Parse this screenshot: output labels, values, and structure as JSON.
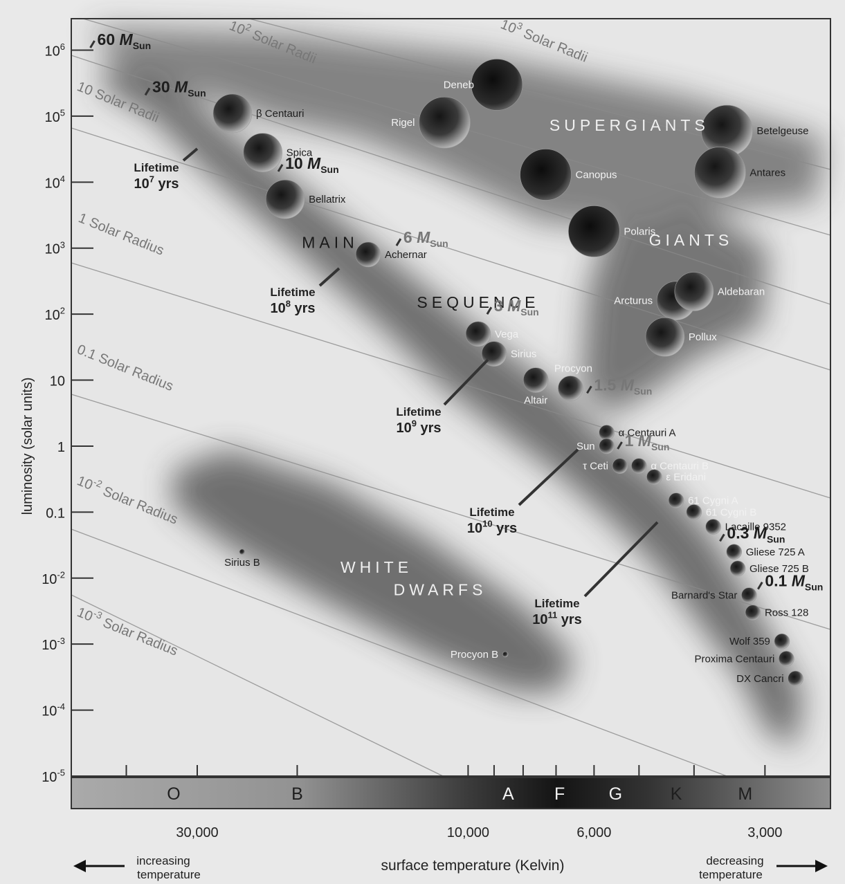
{
  "chart_data": {
    "type": "scatter",
    "title": "",
    "xlabel": "surface temperature (Kelvin)",
    "ylabel": "luminosity (solar units)",
    "x_scale": "log-reversed",
    "y_scale": "log",
    "xlim": [
      50000,
      2300
    ],
    "ylim": [
      1e-05,
      3000000
    ],
    "grid": false,
    "y_ticks": [
      {
        "base": "10",
        "exp": "6",
        "value": 1000000
      },
      {
        "base": "10",
        "exp": "5",
        "value": 100000
      },
      {
        "base": "10",
        "exp": "4",
        "value": 10000
      },
      {
        "base": "10",
        "exp": "3",
        "value": 1000
      },
      {
        "base": "10",
        "exp": "2",
        "value": 100
      },
      {
        "base": "10",
        "exp": "",
        "value": 10
      },
      {
        "base": "1",
        "exp": "",
        "value": 1
      },
      {
        "base": "0.1",
        "exp": "",
        "value": 0.1
      },
      {
        "base": "10",
        "exp": "-2",
        "value": 0.01
      },
      {
        "base": "10",
        "exp": "-3",
        "value": 0.001
      },
      {
        "base": "10",
        "exp": "-4",
        "value": 0.0001
      },
      {
        "base": "10",
        "exp": "-5",
        "value": 1e-05
      }
    ],
    "x_ticks": [
      {
        "label": "30,000",
        "value": 30000
      },
      {
        "label": "10,000",
        "value": 10000
      },
      {
        "label": "6,000",
        "value": 6000
      },
      {
        "label": "3,000",
        "value": 3000
      }
    ],
    "spectral_classes": [
      {
        "label": "O",
        "temp": 33000
      },
      {
        "label": "B",
        "temp": 20000
      },
      {
        "label": "A",
        "temp": 8500
      },
      {
        "label": "F",
        "temp": 6900
      },
      {
        "label": "G",
        "temp": 5500
      },
      {
        "label": "K",
        "temp": 4300
      },
      {
        "label": "M",
        "temp": 3250
      }
    ],
    "regions": [
      {
        "name": "SUPERGIANTS",
        "temp": 5200,
        "lum": 60000
      },
      {
        "name": "GIANTS",
        "temp": 4050,
        "lum": 1100
      },
      {
        "name": "MAIN",
        "temp": 17500,
        "lum": 1000
      },
      {
        "name": "SEQUENCE",
        "temp": 9600,
        "lum": 125
      },
      {
        "name": "WHITE",
        "temp": 14500,
        "lum": 0.012
      },
      {
        "name": "DWARFS",
        "temp": 11200,
        "lum": 0.0055
      }
    ],
    "radius_lines": [
      {
        "label": "10³ Solar Radii",
        "base": "10",
        "exp": "3",
        "text": "Solar Radii"
      },
      {
        "label": "10² Solar Radii",
        "base": "10",
        "exp": "2",
        "text": "Solar Radii"
      },
      {
        "label": "10 Solar Radii",
        "base": "10",
        "exp": "",
        "text": "Solar Radii"
      },
      {
        "label": "1 Solar Radius",
        "base": "1",
        "exp": "",
        "text": "Solar Radius"
      },
      {
        "label": "0.1 Solar Radius",
        "base": "0.1",
        "exp": "",
        "text": "Solar Radius"
      },
      {
        "label": "10⁻² Solar Radius",
        "base": "10",
        "exp": "-2",
        "text": "Solar Radius"
      },
      {
        "label": "10⁻³ Solar Radius",
        "base": "10",
        "exp": "-3",
        "text": "Solar Radius"
      }
    ],
    "stars": [
      {
        "name": "Deneb",
        "temp": 8900,
        "lum": 300000,
        "size": "large"
      },
      {
        "name": "Rigel",
        "temp": 11000,
        "lum": 80000,
        "size": "large"
      },
      {
        "name": "β Centauri",
        "temp": 26000,
        "lum": 110000,
        "size": "medium"
      },
      {
        "name": "Spica",
        "temp": 23000,
        "lum": 28000,
        "size": "medium"
      },
      {
        "name": "Bellatrix",
        "temp": 21000,
        "lum": 5500,
        "size": "medium"
      },
      {
        "name": "Achernar",
        "temp": 15000,
        "lum": 800,
        "size": "small"
      },
      {
        "name": "Betelgeuse",
        "temp": 3500,
        "lum": 60000,
        "size": "large"
      },
      {
        "name": "Antares",
        "temp": 3600,
        "lum": 14000,
        "size": "large"
      },
      {
        "name": "Canopus",
        "temp": 7300,
        "lum": 13000,
        "size": "large"
      },
      {
        "name": "Polaris",
        "temp": 6000,
        "lum": 1800,
        "size": "large"
      },
      {
        "name": "Arcturus",
        "temp": 4300,
        "lum": 160,
        "size": "medium"
      },
      {
        "name": "Aldebaran",
        "temp": 4000,
        "lum": 220,
        "size": "medium"
      },
      {
        "name": "Pollux",
        "temp": 4500,
        "lum": 45,
        "size": "medium"
      },
      {
        "name": "Vega",
        "temp": 9600,
        "lum": 50,
        "size": "small"
      },
      {
        "name": "Sirius",
        "temp": 9000,
        "lum": 25,
        "size": "small"
      },
      {
        "name": "Altair",
        "temp": 7600,
        "lum": 10,
        "size": "small"
      },
      {
        "name": "Procyon",
        "temp": 6600,
        "lum": 7.5,
        "size": "small"
      },
      {
        "name": "α Centauri A",
        "temp": 5700,
        "lum": 1.6,
        "size": "tiny"
      },
      {
        "name": "Sun",
        "temp": 5700,
        "lum": 1,
        "size": "tiny"
      },
      {
        "name": "τ Ceti",
        "temp": 5400,
        "lum": 0.5,
        "size": "tiny"
      },
      {
        "name": "α Centauri B",
        "temp": 5000,
        "lum": 0.5,
        "size": "tiny"
      },
      {
        "name": "ε Eridani",
        "temp": 4700,
        "lum": 0.34,
        "size": "tiny"
      },
      {
        "name": "61 Cygni A",
        "temp": 4300,
        "lum": 0.15,
        "size": "tiny"
      },
      {
        "name": "61 Cygni B",
        "temp": 4000,
        "lum": 0.1,
        "size": "tiny"
      },
      {
        "name": "Lacaille 9352",
        "temp": 3700,
        "lum": 0.06,
        "size": "tiny"
      },
      {
        "name": "Gliese 725 A",
        "temp": 3400,
        "lum": 0.025,
        "size": "tiny"
      },
      {
        "name": "Gliese 725 B",
        "temp": 3350,
        "lum": 0.014,
        "size": "tiny"
      },
      {
        "name": "Barnard's Star",
        "temp": 3200,
        "lum": 0.0055,
        "size": "tiny"
      },
      {
        "name": "Ross 128",
        "temp": 3150,
        "lum": 0.003,
        "size": "tiny"
      },
      {
        "name": "Wolf 359",
        "temp": 2800,
        "lum": 0.0011,
        "size": "tiny"
      },
      {
        "name": "Proxima Centauri",
        "temp": 2750,
        "lum": 0.0006,
        "size": "tiny"
      },
      {
        "name": "DX Cancri",
        "temp": 2650,
        "lum": 0.0003,
        "size": "tiny"
      },
      {
        "name": "Sirius B",
        "temp": 25000,
        "lum": 0.025,
        "size": "dot"
      },
      {
        "name": "Procyon B",
        "temp": 8600,
        "lum": 0.0007,
        "size": "dot"
      }
    ],
    "mass_labels": [
      {
        "num": "60",
        "temp": 45000,
        "lum": 1200000
      },
      {
        "num": "30",
        "temp": 36000,
        "lum": 230000
      },
      {
        "num": "10",
        "temp": 21000,
        "lum": 16000
      },
      {
        "num": "6",
        "temp": 13000,
        "lum": 1200
      },
      {
        "num": "3",
        "temp": 9000,
        "lum": 110
      },
      {
        "num": "1.5",
        "temp": 6000,
        "lum": 7
      },
      {
        "num": "1",
        "temp": 5300,
        "lum": 1
      },
      {
        "num": "0.3",
        "temp": 3500,
        "lum": 0.04
      },
      {
        "num": "0.1",
        "temp": 3000,
        "lum": 0.0075
      }
    ],
    "mass_unit": "M",
    "mass_sub": "Sun",
    "lifetimes": [
      {
        "label": "Lifetime",
        "base": "10",
        "exp": "7",
        "unit": "yrs"
      },
      {
        "label": "Lifetime",
        "base": "10",
        "exp": "8",
        "unit": "yrs"
      },
      {
        "label": "Lifetime",
        "base": "10",
        "exp": "9",
        "unit": "yrs"
      },
      {
        "label": "Lifetime",
        "base": "10",
        "exp": "10",
        "unit": "yrs"
      },
      {
        "label": "Lifetime",
        "base": "10",
        "exp": "11",
        "unit": "yrs"
      }
    ],
    "footer": {
      "left_text": [
        "increasing",
        "temperature"
      ],
      "right_text": [
        "decreasing",
        "temperature"
      ]
    },
    "colors": {
      "background": "#e6e6e6",
      "region": "#4a4a4a",
      "line": "#8a8a8a",
      "text": "#1e1e1e"
    }
  }
}
